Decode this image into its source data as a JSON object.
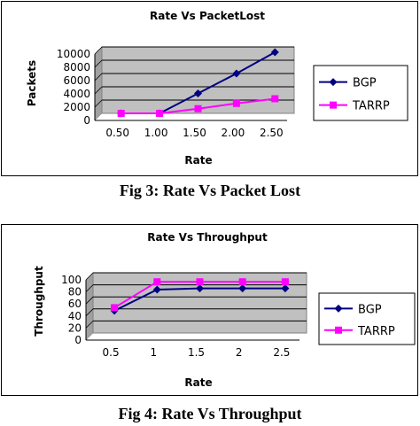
{
  "colors": {
    "bgp": "#000080",
    "tarrp": "#ff00ff",
    "plot_area": "#c0c0c0"
  },
  "captions": {
    "fig3": "Fig 3: Rate Vs Packet Lost",
    "fig4": "Fig 4: Rate Vs Throughput"
  },
  "chart_data": [
    {
      "type": "line",
      "title": "Rate Vs PacketLost",
      "xlabel": "Rate",
      "ylabel": "Packets",
      "categories": [
        "0.50",
        "1.00",
        "1.50",
        "2.00",
        "2.50"
      ],
      "yticks": [
        "0",
        "2000",
        "4000",
        "6000",
        "8000",
        "10000"
      ],
      "ylim": [
        0,
        10000
      ],
      "grid": true,
      "legend": "right",
      "series": [
        {
          "name": "BGP",
          "values": [
            0,
            0,
            3000,
            6000,
            9200
          ],
          "color": "#000080",
          "marker": "diamond"
        },
        {
          "name": "TARRP",
          "values": [
            0,
            0,
            700,
            1500,
            2200
          ],
          "color": "#ff00ff",
          "marker": "square"
        }
      ]
    },
    {
      "type": "line",
      "title": "Rate Vs Throughput",
      "xlabel": "Rate",
      "ylabel": "Throughput",
      "categories": [
        "0.5",
        "1",
        "1.5",
        "2",
        "2.5"
      ],
      "yticks": [
        "0",
        "20",
        "40",
        "60",
        "80",
        "100"
      ],
      "ylim": [
        0,
        100
      ],
      "grid": true,
      "legend": "right",
      "series": [
        {
          "name": "BGP",
          "values": [
            37,
            72,
            74,
            74,
            74
          ],
          "color": "#000080",
          "marker": "diamond"
        },
        {
          "name": "TARRP",
          "values": [
            42,
            85,
            85,
            85,
            85
          ],
          "color": "#ff00ff",
          "marker": "square"
        }
      ]
    }
  ]
}
